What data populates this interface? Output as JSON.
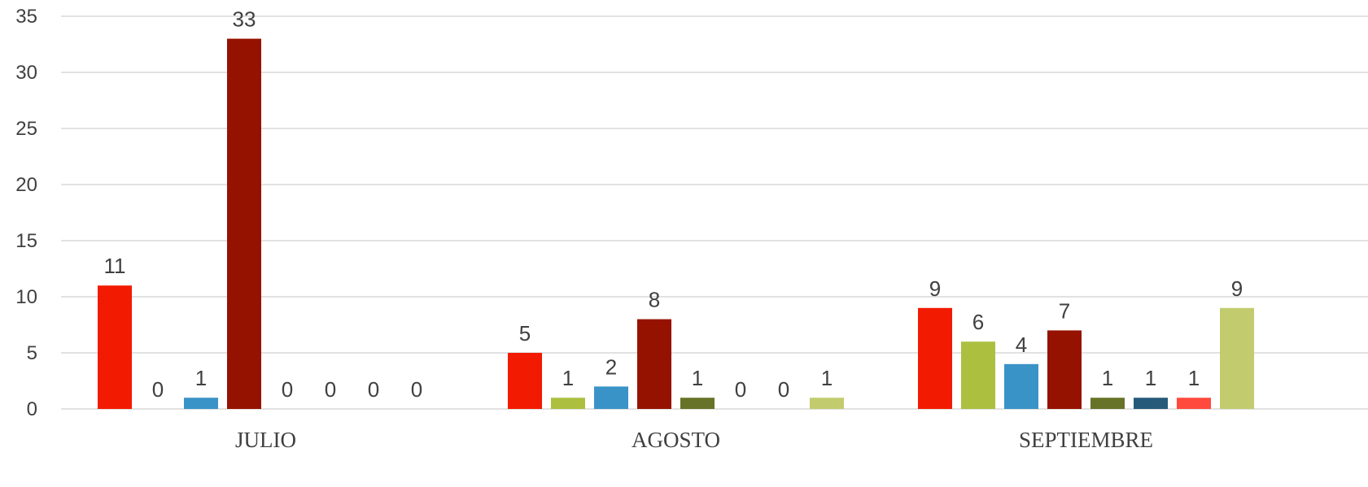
{
  "chart_data": {
    "type": "bar",
    "title": "",
    "xlabel": "",
    "ylabel": "",
    "ylim": [
      0,
      35
    ],
    "yticks": [
      0,
      5,
      10,
      15,
      20,
      25,
      30,
      35
    ],
    "grid": true,
    "legend": "none",
    "categories": [
      "JULIO",
      "AGOSTO",
      "SEPTIEMBRE"
    ],
    "series": [
      {
        "color": "#f21a00",
        "values": [
          11,
          5,
          9
        ]
      },
      {
        "color": "#adbf3f",
        "values": [
          0,
          1,
          6
        ]
      },
      {
        "color": "#3a93c6",
        "values": [
          1,
          2,
          4
        ]
      },
      {
        "color": "#961200",
        "values": [
          33,
          8,
          7
        ]
      },
      {
        "color": "#667328",
        "values": [
          0,
          1,
          1
        ]
      },
      {
        "color": "#255a79",
        "values": [
          0,
          0,
          1
        ]
      },
      {
        "color": "#ff4a3d",
        "values": [
          0,
          0,
          1
        ]
      },
      {
        "color": "#c2cc6e",
        "values": [
          0,
          1,
          9
        ]
      }
    ]
  }
}
